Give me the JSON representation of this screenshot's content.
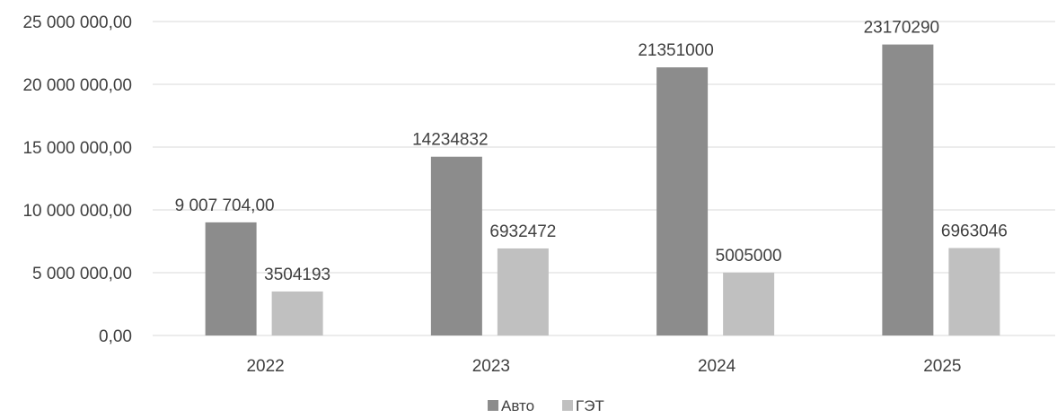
{
  "chart_data": {
    "type": "bar",
    "categories": [
      "2022",
      "2023",
      "2024",
      "2025"
    ],
    "series": [
      {
        "name": "Авто",
        "color": "#8c8c8c",
        "values": [
          9007704,
          14234832,
          21351000,
          23170290
        ],
        "data_labels": [
          "9 007 704,00",
          "14234832",
          "21351000",
          "23170290"
        ]
      },
      {
        "name": "ГЭТ",
        "color": "#c0c0c0",
        "values": [
          3504193,
          6932472,
          5005000,
          6963046
        ],
        "data_labels": [
          "3504193",
          "6932472",
          "5005000",
          "6963046"
        ]
      }
    ],
    "ylim": [
      0,
      25000000
    ],
    "y_ticks": [
      {
        "value": 0,
        "label": "0,00"
      },
      {
        "value": 5000000,
        "label": "5 000 000,00"
      },
      {
        "value": 10000000,
        "label": "10 000 000,00"
      },
      {
        "value": 15000000,
        "label": "15 000 000,00"
      },
      {
        "value": 20000000,
        "label": "20 000 000,00"
      },
      {
        "value": 25000000,
        "label": "25 000 000,00"
      }
    ],
    "grid": true,
    "legend_position": "bottom-center",
    "title": "",
    "xlabel": "",
    "ylabel": ""
  }
}
